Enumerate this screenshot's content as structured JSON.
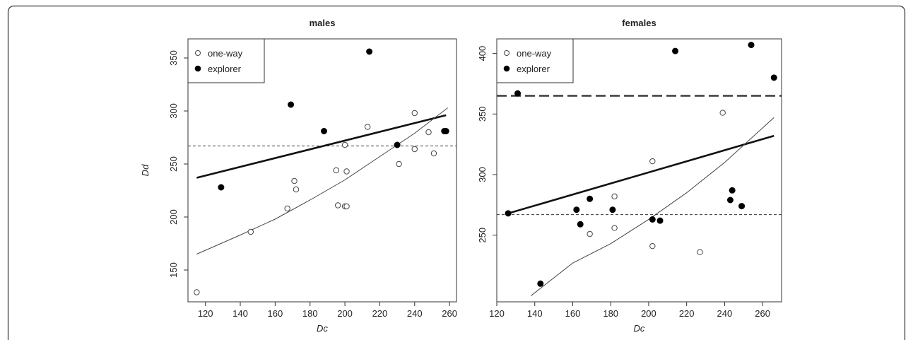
{
  "chart_data": [
    {
      "type": "scatter",
      "title": "males",
      "xlabel": "Dc",
      "ylabel": "Dd",
      "xlim": [
        110,
        264
      ],
      "ylim": [
        120,
        368
      ],
      "xticks": [
        120,
        140,
        160,
        180,
        200,
        220,
        240,
        260
      ],
      "yticks": [
        150,
        200,
        250,
        300,
        350
      ],
      "legend": {
        "position": "top-left",
        "entries": [
          "one-way",
          "explorer"
        ]
      },
      "series": [
        {
          "name": "one-way",
          "marker": "open-circle",
          "x": [
            115,
            146,
            167,
            171,
            172,
            195,
            196,
            200,
            200,
            201,
            201,
            213,
            231,
            240,
            240,
            248,
            251
          ],
          "y": [
            129,
            186,
            208,
            234,
            226,
            244,
            211,
            268,
            210,
            243,
            210,
            285,
            250,
            298,
            264,
            280,
            260
          ]
        },
        {
          "name": "explorer",
          "marker": "filled-circle",
          "x": [
            129,
            169,
            188,
            214,
            230,
            257,
            258
          ],
          "y": [
            228,
            306,
            281,
            356,
            268,
            281,
            281
          ]
        }
      ],
      "lines": [
        {
          "style": "thick-solid",
          "x": [
            115,
            258
          ],
          "y": [
            237,
            296
          ]
        },
        {
          "style": "thin-curve",
          "x": [
            115,
            140,
            160,
            180,
            200,
            220,
            240,
            259
          ],
          "y": [
            165,
            183,
            198,
            216,
            235,
            257,
            279,
            303
          ]
        },
        {
          "style": "dashed-horizontal",
          "y": 267
        }
      ]
    },
    {
      "type": "scatter",
      "title": "females",
      "xlabel": "Dc",
      "ylabel": "",
      "xlim": [
        120,
        270
      ],
      "ylim": [
        195,
        412
      ],
      "xticks": [
        120,
        140,
        160,
        180,
        200,
        220,
        240,
        260
      ],
      "yticks": [
        250,
        300,
        350,
        400
      ],
      "legend": {
        "position": "top-left",
        "entries": [
          "one-way",
          "explorer"
        ]
      },
      "series": [
        {
          "name": "one-way",
          "marker": "open-circle",
          "x": [
            169,
            182,
            182,
            202,
            202,
            227,
            239
          ],
          "y": [
            251,
            282,
            256,
            311,
            241,
            236,
            351
          ]
        },
        {
          "name": "explorer",
          "marker": "filled-circle",
          "x": [
            126,
            131,
            143,
            162,
            164,
            169,
            181,
            202,
            206,
            214,
            243,
            244,
            249,
            254,
            266
          ],
          "y": [
            268,
            367,
            210,
            271,
            259,
            280,
            271,
            263,
            262,
            402,
            279,
            287,
            274,
            407,
            380
          ]
        }
      ],
      "lines": [
        {
          "style": "thick-solid",
          "x": [
            126,
            266
          ],
          "y": [
            268,
            332
          ]
        },
        {
          "style": "thin-curve",
          "x": [
            138,
            160,
            180,
            200,
            220,
            240,
            266
          ],
          "y": [
            200,
            227,
            243,
            263,
            285,
            310,
            347
          ]
        },
        {
          "style": "thick-dashed-horizontal",
          "y": 365
        },
        {
          "style": "dashed-horizontal",
          "y": 267
        }
      ]
    }
  ]
}
